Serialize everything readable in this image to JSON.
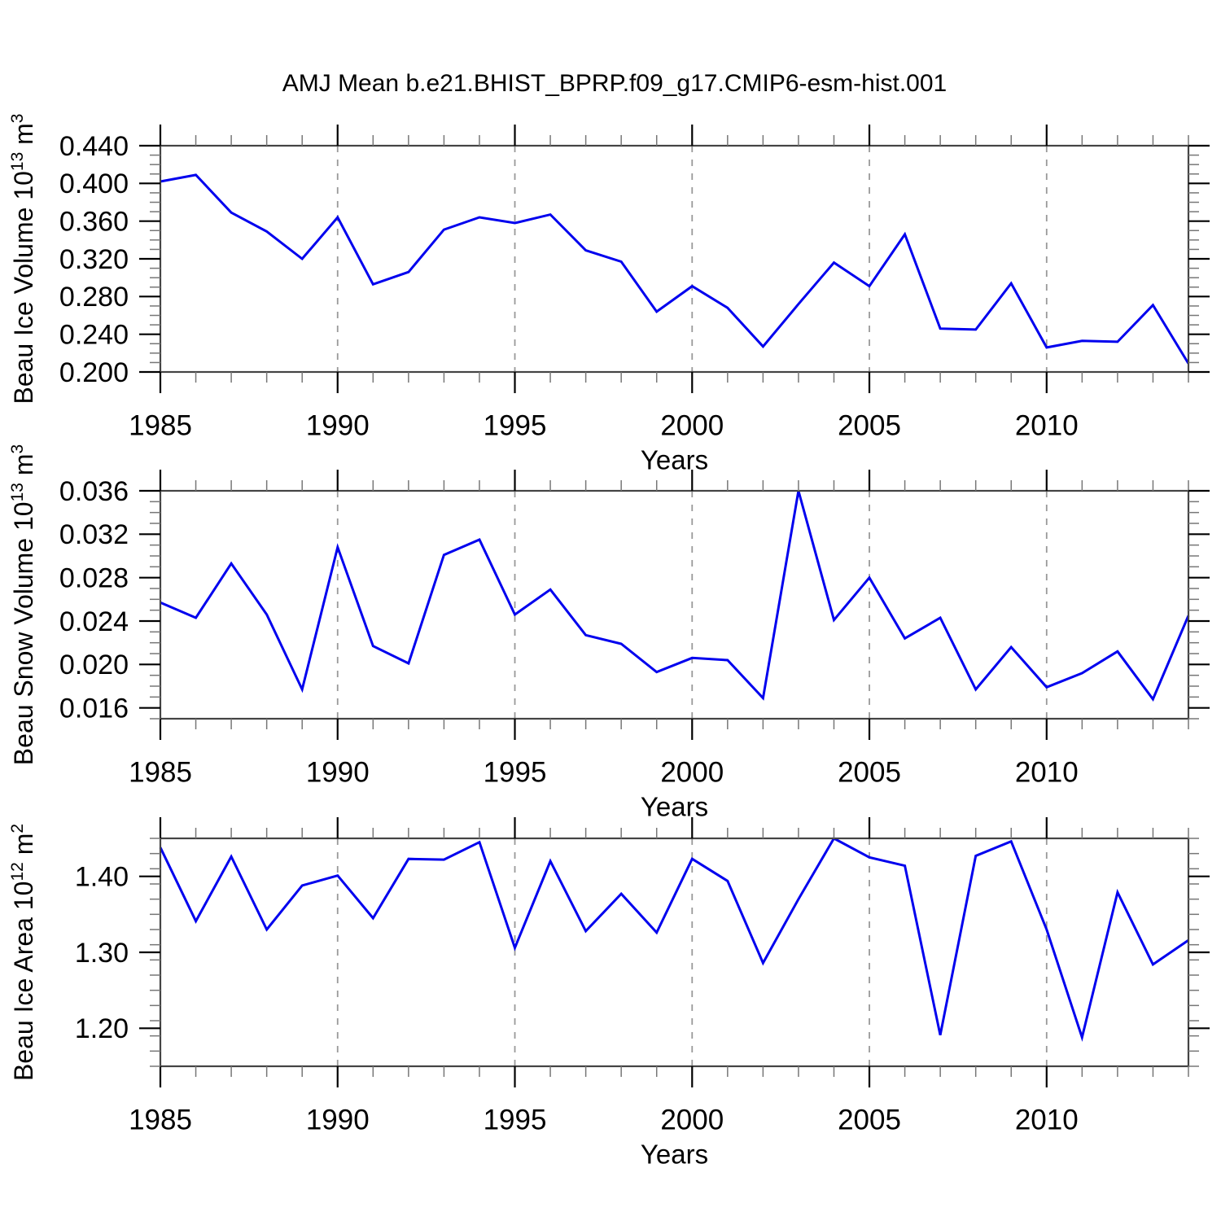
{
  "title": "AMJ Mean b.e21.BHIST_BPRP.f09_g17.CMIP6-esm-hist.001",
  "colors": {
    "line": "#0000EE",
    "frame": "#444444",
    "major_tick": "#000000",
    "minor_tick": "#777777",
    "gridline": "#999999",
    "text": "#000000",
    "background": "#FFFFFF"
  },
  "x_axis": {
    "label": "Years",
    "years": [
      1985,
      1986,
      1987,
      1988,
      1989,
      1990,
      1991,
      1992,
      1993,
      1994,
      1995,
      1996,
      1997,
      1998,
      1999,
      2000,
      2001,
      2002,
      2003,
      2004,
      2005,
      2006,
      2007,
      2008,
      2009,
      2010,
      2011,
      2012,
      2013,
      2014
    ],
    "major_ticks": [
      1985,
      1990,
      1995,
      2000,
      2005,
      2010
    ],
    "major_tick_labels": [
      "1985",
      "1990",
      "1995",
      "2000",
      "2005",
      "2010"
    ],
    "minor_step_years": 1,
    "gridline_years": [
      1990,
      1995,
      2000,
      2005,
      2010
    ]
  },
  "chart_data": [
    {
      "type": "line",
      "name": "beau-ice-volume",
      "ylabel": "Beau Ice Volume 10^13 m^3",
      "ylabel_parts": [
        [
          "Beau Ice Volume 10",
          false
        ],
        [
          "13",
          true
        ],
        [
          " m",
          false
        ],
        [
          "3",
          true
        ]
      ],
      "xlabel": "Years",
      "ylim": [
        0.2,
        0.44
      ],
      "y_major_ticks": [
        {
          "v": 0.2,
          "label": "0.200"
        },
        {
          "v": 0.24,
          "label": "0.240"
        },
        {
          "v": 0.28,
          "label": "0.280"
        },
        {
          "v": 0.32,
          "label": "0.320"
        },
        {
          "v": 0.36,
          "label": "0.360"
        },
        {
          "v": 0.4,
          "label": "0.400"
        },
        {
          "v": 0.44,
          "label": "0.440"
        }
      ],
      "y_minor_step": 0.01,
      "x": [
        1985,
        1986,
        1987,
        1988,
        1989,
        1990,
        1991,
        1992,
        1993,
        1994,
        1995,
        1996,
        1997,
        1998,
        1999,
        2000,
        2001,
        2002,
        2003,
        2004,
        2005,
        2006,
        2007,
        2008,
        2009,
        2010,
        2011,
        2012,
        2013,
        2014
      ],
      "values": [
        0.402,
        0.409,
        0.369,
        0.349,
        0.32,
        0.364,
        0.293,
        0.306,
        0.351,
        0.364,
        0.358,
        0.367,
        0.329,
        0.317,
        0.264,
        0.291,
        0.268,
        0.227,
        0.272,
        0.316,
        0.291,
        0.346,
        0.246,
        0.245,
        0.294,
        0.226,
        0.233,
        0.232,
        0.271,
        0.209
      ]
    },
    {
      "type": "line",
      "name": "beau-snow-volume",
      "ylabel": "Beau Snow Volume 10^13 m^3",
      "ylabel_parts": [
        [
          "Beau Snow Volume 10",
          false
        ],
        [
          "13",
          true
        ],
        [
          " m",
          false
        ],
        [
          "3",
          true
        ]
      ],
      "xlabel": "Years",
      "ylim": [
        0.015,
        0.036
      ],
      "y_major_ticks": [
        {
          "v": 0.016,
          "label": "0.016"
        },
        {
          "v": 0.02,
          "label": "0.020"
        },
        {
          "v": 0.024,
          "label": "0.024"
        },
        {
          "v": 0.028,
          "label": "0.028"
        },
        {
          "v": 0.032,
          "label": "0.032"
        },
        {
          "v": 0.036,
          "label": "0.036"
        }
      ],
      "y_minor_step": 0.001,
      "x": [
        1985,
        1986,
        1987,
        1988,
        1989,
        1990,
        1991,
        1992,
        1993,
        1994,
        1995,
        1996,
        1997,
        1998,
        1999,
        2000,
        2001,
        2002,
        2003,
        2004,
        2005,
        2006,
        2007,
        2008,
        2009,
        2010,
        2011,
        2012,
        2013,
        2014
      ],
      "values": [
        0.0257,
        0.0243,
        0.0293,
        0.0246,
        0.0177,
        0.0308,
        0.0217,
        0.0201,
        0.0301,
        0.0315,
        0.0246,
        0.0269,
        0.0227,
        0.0219,
        0.0193,
        0.0206,
        0.0204,
        0.0169,
        0.036,
        0.0241,
        0.028,
        0.0224,
        0.0243,
        0.0177,
        0.0216,
        0.0179,
        0.0192,
        0.0212,
        0.0168,
        0.0245
      ]
    },
    {
      "type": "line",
      "name": "beau-ice-area",
      "ylabel": "Beau Ice Area 10^12 m^2",
      "ylabel_parts": [
        [
          "Beau Ice Area 10",
          false
        ],
        [
          "12",
          true
        ],
        [
          " m",
          false
        ],
        [
          "2",
          true
        ]
      ],
      "xlabel": "Years",
      "ylim": [
        1.15,
        1.45
      ],
      "y_major_ticks": [
        {
          "v": 1.2,
          "label": "1.20"
        },
        {
          "v": 1.3,
          "label": "1.30"
        },
        {
          "v": 1.4,
          "label": "1.40"
        }
      ],
      "y_minor_step": 0.02,
      "x": [
        1985,
        1986,
        1987,
        1988,
        1989,
        1990,
        1991,
        1992,
        1993,
        1994,
        1995,
        1996,
        1997,
        1998,
        1999,
        2000,
        2001,
        2002,
        2003,
        2004,
        2005,
        2006,
        2007,
        2008,
        2009,
        2010,
        2011,
        2012,
        2013,
        2014
      ],
      "values": [
        1.438,
        1.341,
        1.426,
        1.33,
        1.388,
        1.401,
        1.345,
        1.423,
        1.422,
        1.445,
        1.306,
        1.42,
        1.328,
        1.377,
        1.326,
        1.423,
        1.394,
        1.286,
        1.37,
        1.45,
        1.425,
        1.414,
        1.191,
        1.427,
        1.446,
        1.33,
        1.188,
        1.379,
        1.284,
        1.316
      ]
    }
  ]
}
